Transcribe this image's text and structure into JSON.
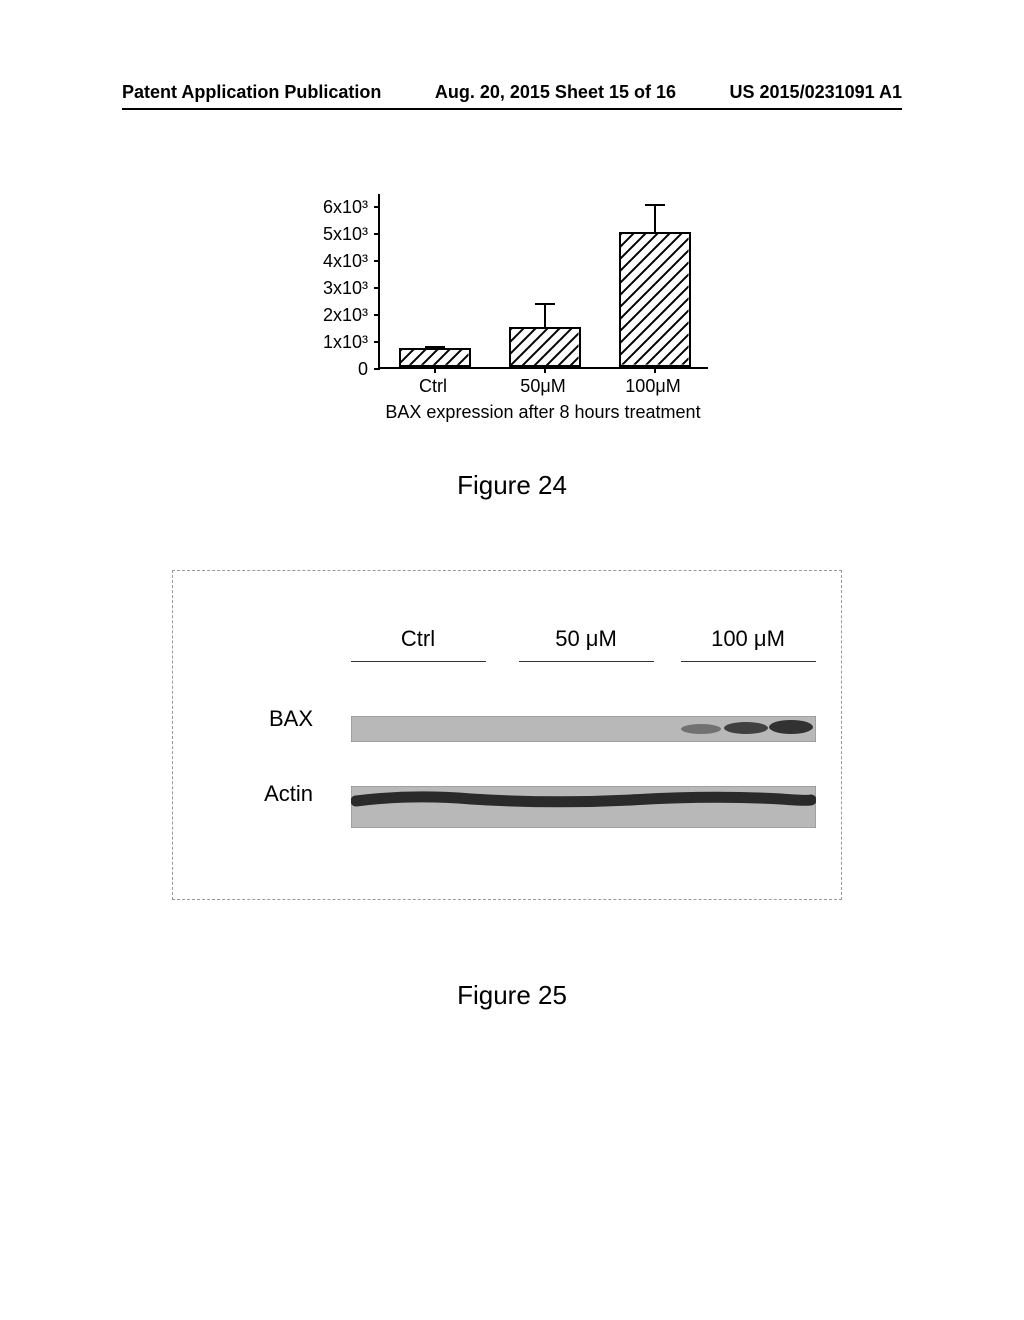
{
  "header": {
    "left": "Patent Application Publication",
    "center": "Aug. 20, 2015  Sheet 15 of 16",
    "right": "US 2015/0231091 A1"
  },
  "figure24": {
    "type": "bar",
    "categories": [
      "Ctrl",
      "50μM",
      "100μM"
    ],
    "values": [
      700,
      1500,
      5000
    ],
    "errors": [
      120,
      900,
      1100
    ],
    "y_ticks": [
      "0",
      "1x10³",
      "2x10³",
      "3x10³",
      "4x10³",
      "5x10³",
      "6x10³"
    ],
    "y_max": 6500,
    "bar_fill": "#ffffff",
    "bar_stroke": "#000000",
    "hatch_color": "#000000",
    "bar_width": 0.65,
    "x_title": "BAX expression after 8 hours treatment",
    "caption": "Figure 24"
  },
  "figure25": {
    "lane_labels": [
      "Ctrl",
      "50 μM",
      "100 μM"
    ],
    "row_labels": [
      "BAX",
      "Actin"
    ],
    "caption": "Figure 25",
    "strip_bg": "#b8b8b8",
    "band_color": "#2a2a2a"
  }
}
